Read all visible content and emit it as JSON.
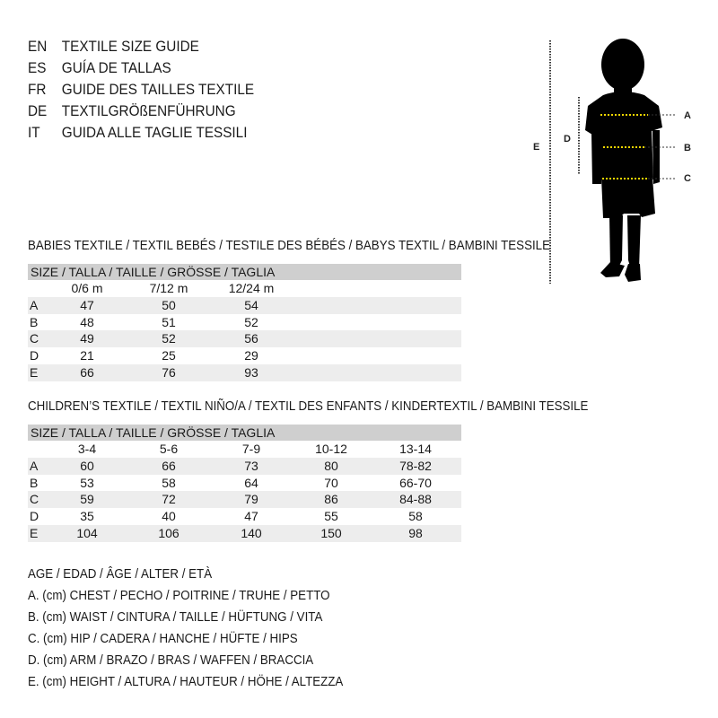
{
  "languages": [
    {
      "code": "EN",
      "title": "TEXTILE SIZE GUIDE"
    },
    {
      "code": "ES",
      "title": "GUÍA DE TALLAS"
    },
    {
      "code": "FR",
      "title": "GUIDE DES TAILLES TEXTILE"
    },
    {
      "code": "DE",
      "title": "TEXTILGRÖßENFÜHRUNG"
    },
    {
      "code": "IT",
      "title": "GUIDA ALLE TAGLIE TESSILI"
    }
  ],
  "babies": {
    "title": "BABIES TEXTILE / TEXTIL BEBÉS / TESTILE DES BÉBÉS / BABYS TEXTIL / BAMBINI TESSILE",
    "size_header": "SIZE / TALLA / TAILLE / GRÖSSE / TAGLIA",
    "columns": [
      "0/6 m",
      "7/12 m",
      "12/24 m"
    ],
    "rows": [
      {
        "label": "A",
        "values": [
          "47",
          "50",
          "54"
        ]
      },
      {
        "label": "B",
        "values": [
          "48",
          "51",
          "52"
        ]
      },
      {
        "label": "C",
        "values": [
          "49",
          "52",
          "56"
        ]
      },
      {
        "label": "D",
        "values": [
          "21",
          "25",
          "29"
        ]
      },
      {
        "label": "E",
        "values": [
          "66",
          "76",
          "93"
        ]
      }
    ]
  },
  "children": {
    "title": "CHILDREN’S TEXTILE / TEXTIL NIÑO/A / TEXTIL DES ENFANTS / KINDERTEXTIL / BAMBINI TESSILE",
    "size_header": "SIZE / TALLA / TAILLE / GRÖSSE / TAGLIA",
    "columns": [
      "3-4",
      "5-6",
      "7-9",
      "10-12",
      "13-14"
    ],
    "rows": [
      {
        "label": "A",
        "values": [
          "60",
          "66",
          "73",
          "80",
          "78-82"
        ]
      },
      {
        "label": "B",
        "values": [
          "53",
          "58",
          "64",
          "70",
          "66-70"
        ]
      },
      {
        "label": "C",
        "values": [
          "59",
          "72",
          "79",
          "86",
          "84-88"
        ]
      },
      {
        "label": "D",
        "values": [
          "35",
          "40",
          "47",
          "55",
          "58"
        ]
      },
      {
        "label": "E",
        "values": [
          "104",
          "106",
          "140",
          "150",
          "98"
        ]
      }
    ]
  },
  "legend": [
    "AGE / EDAD / ÂGE / ALTER / ETÀ",
    "A. (cm) CHEST / PECHO / POITRINE / TRUHE / PETTO",
    "B. (cm) WAIST / CINTURA / TAILLE / HÜFTUNG / VITA",
    "C. (cm) HIP / CADERA / HANCHE / HÜFTE / HIPS",
    "D. (cm) ARM / BRAZO / BRAS / WAFFEN / BRACCIA",
    "E. (cm) HEIGHT / ALTURA / HAUTEUR / HÖHE / ALTEZZA"
  ],
  "figure": {
    "labels": {
      "a": "A",
      "b": "B",
      "c": "C",
      "d": "D",
      "e": "E"
    },
    "guide_color": "#f2d600"
  }
}
